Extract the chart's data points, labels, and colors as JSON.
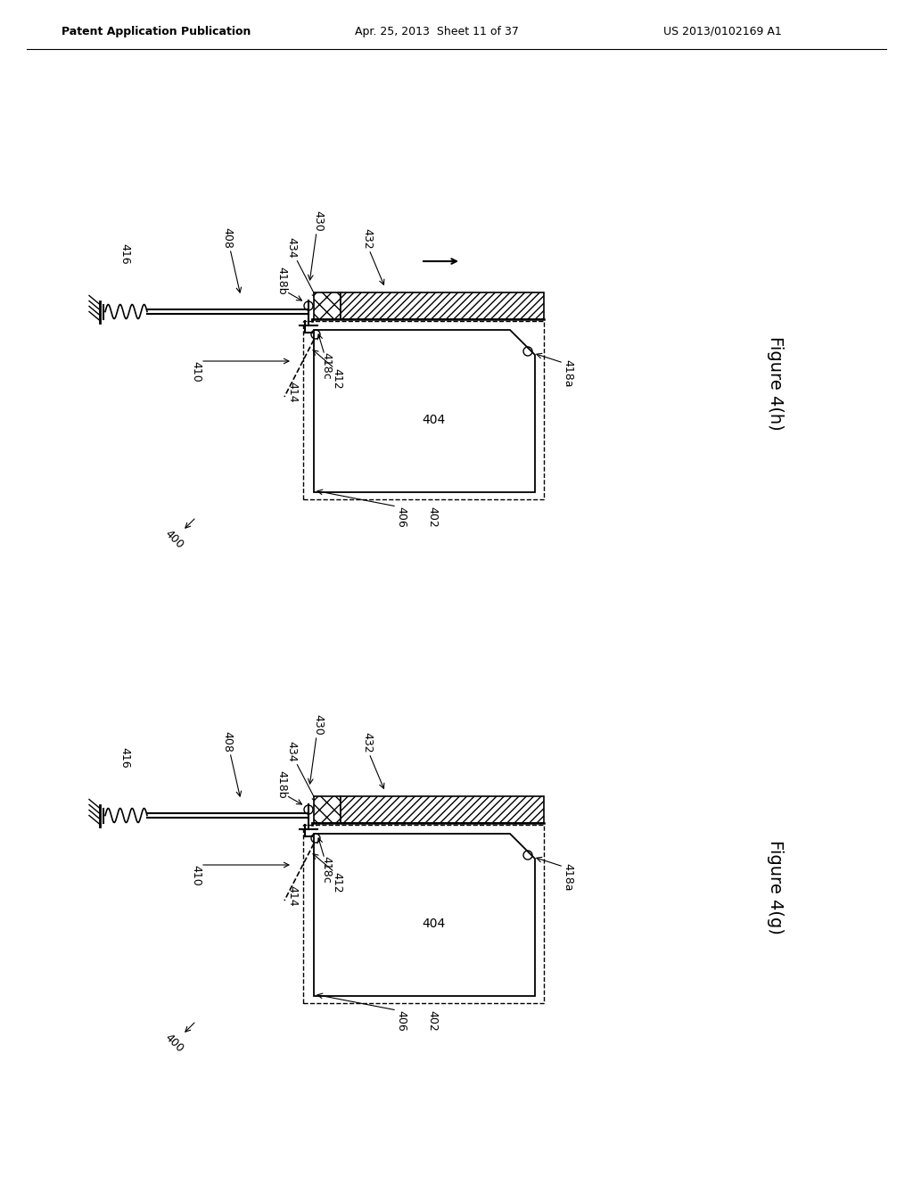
{
  "bg_color": "#ffffff",
  "line_color": "#000000",
  "header_left": "Patent Application Publication",
  "header_mid": "Apr. 25, 2013  Sheet 11 of 37",
  "header_right": "US 2013/0102169 A1",
  "fig_h_label": "Figure 4(h)",
  "fig_g_label": "Figure 4(g)"
}
